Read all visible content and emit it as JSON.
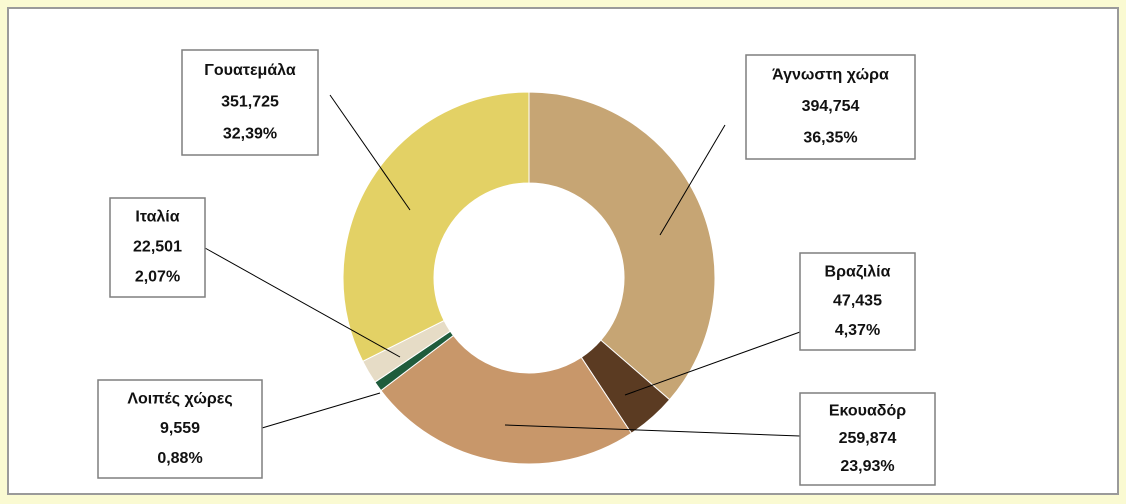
{
  "chart_data": {
    "type": "pie",
    "categories": [
      "Άγνωστη χώρα",
      "Βραζιλία",
      "Εκουαδόρ",
      "Λοιπές χώρες",
      "Ιταλία",
      "Γουατεμάλα"
    ],
    "values": [
      394.754,
      47.435,
      259.874,
      9.559,
      22.501,
      351.725
    ],
    "value_labels": [
      "394,754",
      "47,435",
      "259,874",
      "9,559",
      "22,501",
      "351,725"
    ],
    "percentages": [
      36.35,
      4.37,
      23.93,
      0.88,
      2.07,
      32.39
    ],
    "percentage_labels": [
      "36,35%",
      "4,37%",
      "23,93%",
      "0,88%",
      "2,07%",
      "32,39%"
    ],
    "colors": [
      "#c6a574",
      "#5b3b22",
      "#c8976a",
      "#1f5c3c",
      "#e6dcc6",
      "#e3d165"
    ]
  }
}
